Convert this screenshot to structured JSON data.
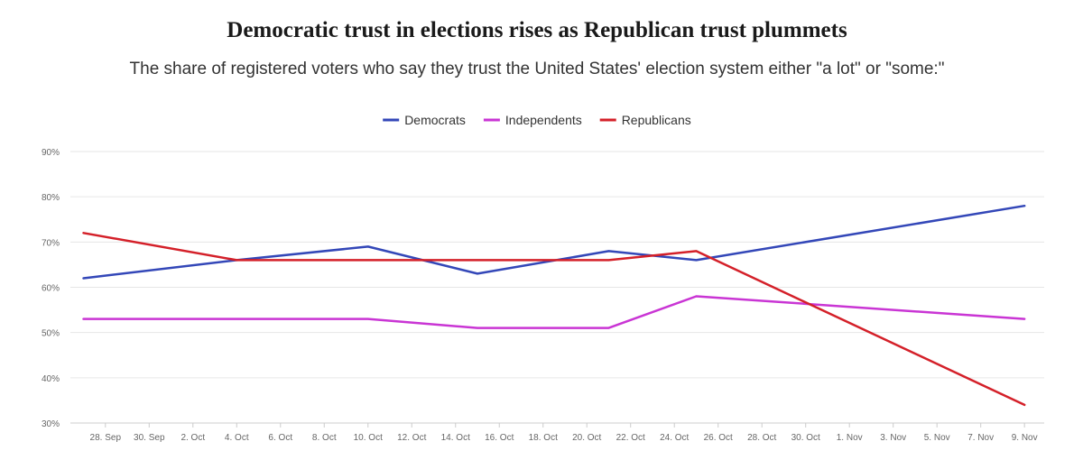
{
  "header": {
    "title": "Democratic trust in elections rises as Republican trust plummets",
    "subtitle": "The share of registered voters who say they trust the United States' election system either \"a lot\" or \"some:\""
  },
  "chart_data": {
    "type": "line",
    "title": "Democratic trust in elections rises as Republican trust plummets",
    "subtitle": "The share of registered voters who say they trust the United States' election system either \"a lot\" or \"some:\"",
    "xlabel": "",
    "ylabel": "",
    "grid": true,
    "legend_position": "top-center",
    "ylim": [
      30,
      90
    ],
    "y_ticks": [
      "30%",
      "40%",
      "50%",
      "60%",
      "70%",
      "80%",
      "90%"
    ],
    "x_ticks": [
      "28. Sep",
      "30. Sep",
      "2. Oct",
      "4. Oct",
      "6. Oct",
      "8. Oct",
      "10. Oct",
      "12. Oct",
      "14. Oct",
      "16. Oct",
      "18. Oct",
      "20. Oct",
      "22. Oct",
      "24. Oct",
      "26. Oct",
      "28. Oct",
      "30. Oct",
      "1. Nov",
      "3. Nov",
      "5. Nov",
      "7. Nov",
      "9. Nov"
    ],
    "x_dates": [
      "2022-09-27",
      "2022-10-04",
      "2022-10-10",
      "2022-10-15",
      "2022-10-21",
      "2022-10-25",
      "2022-11-09"
    ],
    "series": [
      {
        "name": "Democrats",
        "color": "#3347b8",
        "values": [
          62,
          66,
          69,
          63,
          68,
          66,
          78
        ]
      },
      {
        "name": "Independents",
        "color": "#c935d4",
        "values": [
          53,
          53,
          53,
          51,
          51,
          58,
          53
        ]
      },
      {
        "name": "Republicans",
        "color": "#d42029",
        "values": [
          72,
          66,
          66,
          66,
          66,
          68,
          34
        ]
      }
    ]
  }
}
